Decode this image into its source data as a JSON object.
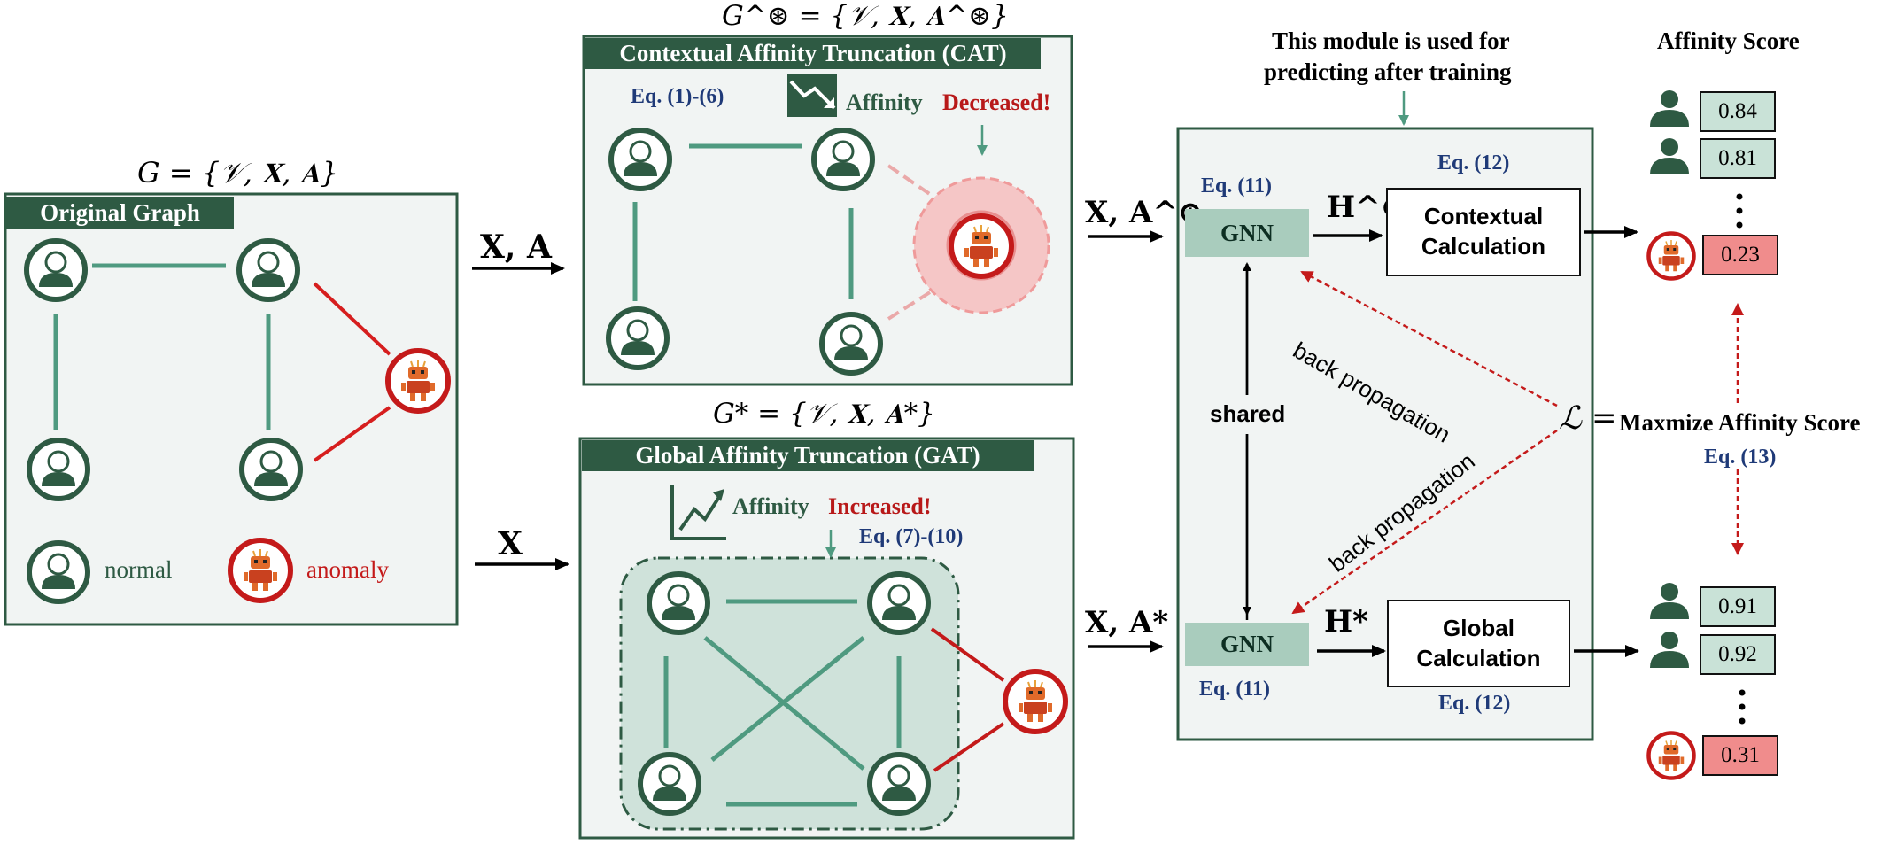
{
  "original_graph": {
    "formula": "G = {𝒱, 𝐗, 𝐀}",
    "header": "Original Graph",
    "legend_normal": "normal",
    "legend_anomaly": "anomaly"
  },
  "arrows": {
    "to_cat": "𝐗, 𝐀",
    "to_gat": "𝐗",
    "cat_out": "𝐗, 𝐀^⊛",
    "gat_out": "𝐗, 𝐀*",
    "h_cat": "𝐇^⊛",
    "h_gat": "𝐇*"
  },
  "cat": {
    "formula": "G^⊛ = {𝒱, 𝐗, 𝐀^⊛}",
    "header": "Contextual Affinity Truncation (CAT)",
    "eq": "Eq. (1)-(6)",
    "affinity_word": "Affinity",
    "affinity_change": "Decreased!"
  },
  "gat": {
    "formula": "G* = {𝒱, 𝐗, 𝐀*}",
    "header": "Global Affinity Truncation (GAT)",
    "eq": "Eq. (7)-(10)",
    "affinity_word": "Affinity",
    "affinity_change": "Increased!"
  },
  "module": {
    "note_line1": "This module is used for",
    "note_line2": "predicting after training",
    "gnn_top": "GNN",
    "gnn_bottom": "GNN",
    "eq11_top": "Eq. (11)",
    "eq11_bottom": "Eq. (11)",
    "eq12_top": "Eq. (12)",
    "eq12_bottom": "Eq. (12)",
    "calc_top_line1": "Contextual",
    "calc_top_line2": "Calculation",
    "calc_bottom_line1": "Global",
    "calc_bottom_line2": "Calculation",
    "shared": "shared",
    "back_prop_1": "back propagation",
    "back_prop_2": "back propagation"
  },
  "loss": {
    "symbol": "ℒ",
    "equals": "=",
    "text": "Maxmize Affinity Score",
    "eq": "Eq. (13)"
  },
  "scores": {
    "title": "Affinity Score",
    "top": [
      "0.84",
      "0.81",
      "0.23"
    ],
    "bottom": [
      "0.91",
      "0.92",
      "0.31"
    ]
  },
  "colors": {
    "dark_green": "#2e5a43",
    "edge_green": "#4f9a80",
    "anomaly_red": "#c41a1a",
    "panel_bg": "#f1f4f3",
    "eq_blue": "#1f3a78"
  }
}
